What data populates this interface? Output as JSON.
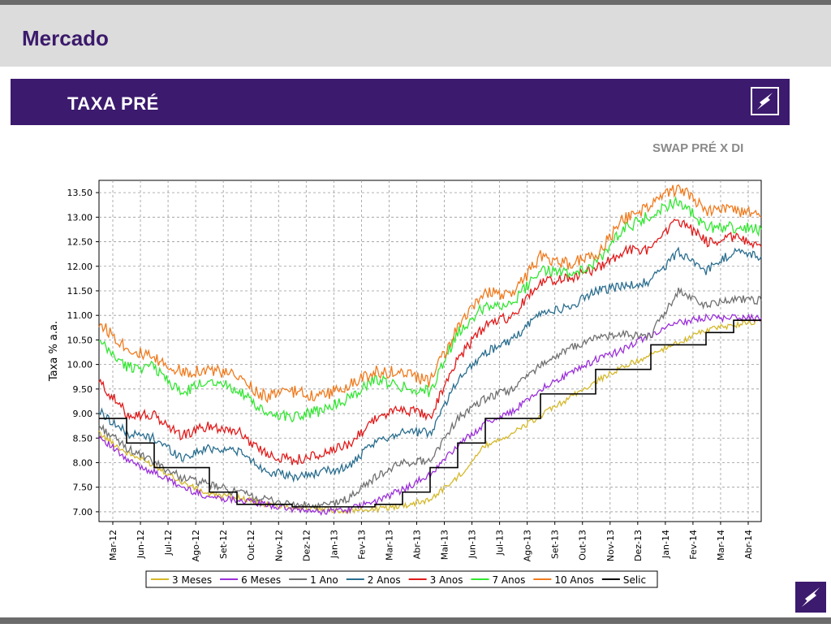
{
  "header": {
    "title": "Mercado"
  },
  "banner": {
    "title": "TAXA PRÉ"
  },
  "colors": {
    "brand_purple": "#3c1a6e",
    "title_purple": "#3b1a6b"
  },
  "chart_data": {
    "type": "line",
    "title": "SWAP PRÉ X DI",
    "ylabel": "Taxa % a.a.",
    "xlabel": "",
    "ylim": [
      6.8,
      13.75
    ],
    "grid": true,
    "legend_position": "bottom",
    "y_ticks": [
      "7.00",
      "7.50",
      "8.00",
      "8.50",
      "9.00",
      "9.50",
      "10.00",
      "10.50",
      "11.00",
      "11.50",
      "12.00",
      "12.50",
      "13.00",
      "13.50"
    ],
    "x_ticks": [
      "Mar-12",
      "Jun-12",
      "Jul-12",
      "Ago-12",
      "Set-12",
      "Out-12",
      "Nov-12",
      "Dez-12",
      "Jan-13",
      "Fev-13",
      "Mar-13",
      "Abr-13",
      "Mai-13",
      "Jun-13",
      "Jul-13",
      "Ago-13",
      "Set-13",
      "Out-13",
      "Nov-13",
      "Dez-13",
      "Jan-14",
      "Fev-14",
      "Mar-14",
      "Abr-14"
    ],
    "x": [
      0,
      1,
      2,
      3,
      4,
      5,
      6,
      7,
      8,
      9,
      10,
      11,
      12,
      13,
      14,
      15,
      16,
      17,
      18,
      19,
      20,
      21,
      22,
      23,
      24
    ],
    "series": [
      {
        "name": "3 Meses",
        "color": "#d4b82a",
        "values": [
          8.6,
          8.2,
          7.95,
          7.6,
          7.35,
          7.3,
          7.15,
          7.1,
          7.05,
          7.02,
          7.05,
          7.12,
          7.25,
          7.7,
          8.35,
          8.6,
          8.95,
          9.3,
          9.65,
          9.95,
          10.2,
          10.45,
          10.7,
          10.8,
          10.9
        ]
      },
      {
        "name": "6 Meses",
        "color": "#9b30d9",
        "values": [
          8.55,
          8.05,
          7.8,
          7.5,
          7.3,
          7.25,
          7.15,
          7.05,
          7.0,
          7.05,
          7.2,
          7.45,
          7.75,
          8.35,
          8.8,
          9.05,
          9.5,
          9.8,
          10.1,
          10.3,
          10.6,
          10.85,
          10.95,
          10.95,
          10.95
        ]
      },
      {
        "name": "1 Ano",
        "color": "#707070",
        "values": [
          8.75,
          8.3,
          8.0,
          7.7,
          7.55,
          7.4,
          7.25,
          7.15,
          7.1,
          7.25,
          7.7,
          8.0,
          8.05,
          8.9,
          9.3,
          9.5,
          10.0,
          10.3,
          10.55,
          10.6,
          10.6,
          11.5,
          11.2,
          11.35,
          11.3
        ]
      },
      {
        "name": "2 Anos",
        "color": "#2a6e8f",
        "values": [
          9.05,
          8.6,
          8.5,
          8.1,
          8.3,
          8.25,
          7.85,
          7.7,
          7.8,
          7.9,
          8.4,
          8.65,
          8.6,
          9.7,
          10.25,
          10.5,
          11.05,
          11.15,
          11.5,
          11.6,
          11.7,
          12.3,
          11.9,
          12.3,
          12.2
        ]
      },
      {
        "name": "3 Anos",
        "color": "#e01b1b",
        "values": [
          9.65,
          9.0,
          8.95,
          8.55,
          8.75,
          8.65,
          8.2,
          8.05,
          8.15,
          8.35,
          8.9,
          9.1,
          8.95,
          10.1,
          10.8,
          11.0,
          11.7,
          11.75,
          11.95,
          12.3,
          12.35,
          12.95,
          12.5,
          12.6,
          12.4
        ]
      },
      {
        "name": "7 Anos",
        "color": "#33e633",
        "values": [
          10.45,
          9.95,
          9.95,
          9.4,
          9.7,
          9.5,
          9.0,
          8.95,
          9.05,
          9.3,
          9.7,
          9.55,
          9.45,
          10.65,
          11.2,
          11.25,
          11.95,
          11.85,
          12.05,
          12.75,
          13.05,
          13.35,
          12.8,
          12.8,
          12.75
        ]
      },
      {
        "name": "10 Anos",
        "color": "#f07b1e",
        "values": [
          10.85,
          10.35,
          10.1,
          9.85,
          9.9,
          9.75,
          9.35,
          9.45,
          9.35,
          9.55,
          9.85,
          9.85,
          9.65,
          10.75,
          11.45,
          11.45,
          12.2,
          12.05,
          12.2,
          12.95,
          13.25,
          13.6,
          13.15,
          13.15,
          13.0
        ]
      },
      {
        "name": "Selic",
        "color": "#000000",
        "step": true,
        "values": [
          8.9,
          8.4,
          7.9,
          7.9,
          7.4,
          7.15,
          7.15,
          7.1,
          7.1,
          7.1,
          7.15,
          7.4,
          7.9,
          8.4,
          8.9,
          8.9,
          9.4,
          9.4,
          9.9,
          9.9,
          10.4,
          10.4,
          10.65,
          10.9,
          10.9
        ]
      }
    ]
  }
}
